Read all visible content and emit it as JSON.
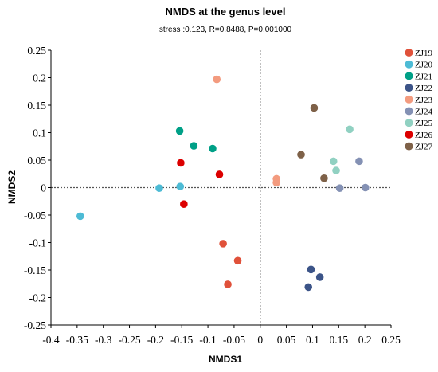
{
  "chart_data": {
    "type": "scatter",
    "title": "NMDS at the genus level",
    "subtitle": "stress :0.123, R=0.8488, P=0.001000",
    "xlabel": "NMDS1",
    "ylabel": "NMDS2",
    "xlim": [
      -0.4,
      0.25
    ],
    "ylim": [
      -0.25,
      0.25
    ],
    "xticks": [
      -0.4,
      -0.35,
      -0.3,
      -0.25,
      -0.2,
      -0.15,
      -0.1,
      -0.05,
      0,
      0.05,
      0.1,
      0.15,
      0.2,
      0.25
    ],
    "xtick_labels": [
      "-0.4",
      "-0.35",
      "-0.3",
      "-0.25",
      "-0.2",
      "-0.15",
      "-0.1",
      "-0.05",
      "0",
      "0.05",
      "0.1",
      "0.15",
      "0.2",
      "0.25"
    ],
    "yticks": [
      0.25,
      0.2,
      0.15,
      0.1,
      0.05,
      0,
      -0.05,
      -0.1,
      -0.15,
      -0.2,
      -0.25
    ],
    "ytick_labels": [
      "0.25",
      "0.2",
      "0.15",
      "0.1",
      "0.05",
      "0",
      "-0.05",
      "-0.1",
      "-0.15",
      "-0.2",
      "-0.25"
    ],
    "reference_lines": {
      "x": 0,
      "y": 0,
      "style": "dotted"
    },
    "grid": false,
    "legend_position": "right",
    "series": [
      {
        "name": "ZJ19",
        "color": "#e0513a",
        "points": [
          [
            -0.071,
            -0.102
          ],
          [
            -0.043,
            -0.133
          ],
          [
            -0.062,
            -0.176
          ]
        ]
      },
      {
        "name": "ZJ20",
        "color": "#4dbbd5",
        "points": [
          [
            -0.344,
            -0.052
          ],
          [
            -0.193,
            -0.001
          ],
          [
            -0.153,
            0.002
          ]
        ]
      },
      {
        "name": "ZJ21",
        "color": "#00a087",
        "points": [
          [
            -0.154,
            0.103
          ],
          [
            -0.127,
            0.076
          ],
          [
            -0.091,
            0.071
          ]
        ]
      },
      {
        "name": "ZJ22",
        "color": "#3c5488",
        "points": [
          [
            0.097,
            -0.149
          ],
          [
            0.114,
            -0.163
          ],
          [
            0.092,
            -0.181
          ]
        ]
      },
      {
        "name": "ZJ23",
        "color": "#f39b7f",
        "points": [
          [
            -0.083,
            0.197
          ],
          [
            0.031,
            0.016
          ],
          [
            0.031,
            0.009
          ]
        ]
      },
      {
        "name": "ZJ24",
        "color": "#8491b4",
        "points": [
          [
            0.189,
            0.048
          ],
          [
            0.152,
            -0.001
          ],
          [
            0.201,
            0.0
          ]
        ]
      },
      {
        "name": "ZJ25",
        "color": "#91d1c2",
        "points": [
          [
            0.171,
            0.106
          ],
          [
            0.14,
            0.048
          ],
          [
            0.145,
            0.031
          ]
        ]
      },
      {
        "name": "ZJ26",
        "color": "#dc0000",
        "points": [
          [
            -0.152,
            0.045
          ],
          [
            -0.078,
            0.024
          ],
          [
            -0.146,
            -0.03
          ]
        ]
      },
      {
        "name": "ZJ27",
        "color": "#7e6148",
        "points": [
          [
            0.103,
            0.145
          ],
          [
            0.078,
            0.06
          ],
          [
            0.122,
            0.017
          ]
        ]
      }
    ]
  }
}
